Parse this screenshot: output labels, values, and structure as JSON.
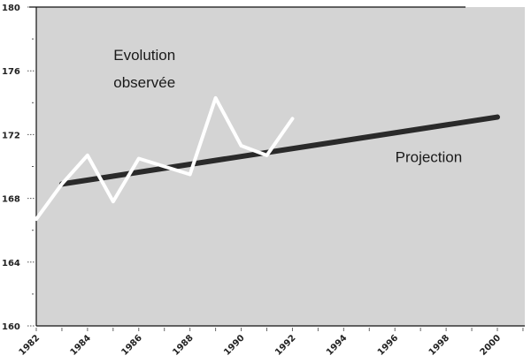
{
  "chart_data": {
    "type": "line",
    "title": "",
    "xlabel": "",
    "ylabel": "",
    "xlim": [
      1982,
      2001
    ],
    "ylim": [
      160,
      180
    ],
    "grid": false,
    "background": "#d4d4d4",
    "x_ticks": [
      1982,
      1984,
      1986,
      1988,
      1990,
      1992,
      1994,
      1996,
      1998,
      2000
    ],
    "x_tick_labels": [
      "1982",
      "1984",
      "1986",
      "1988",
      "1990",
      "1992",
      "1994",
      "1996",
      "1998",
      "2000"
    ],
    "y_ticks": [
      160,
      164,
      168,
      172,
      176,
      180
    ],
    "y_tick_labels": [
      "160",
      "164",
      "168",
      "172",
      "176",
      "180"
    ],
    "series": [
      {
        "name": "Evolution observée",
        "color": "#ffffff",
        "x": [
          1982,
          1983,
          1984,
          1985,
          1986,
          1988,
          1989,
          1990,
          1991,
          1992
        ],
        "values": [
          166.7,
          168.9,
          170.7,
          167.8,
          170.5,
          169.5,
          174.3,
          171.3,
          170.7,
          173.0
        ]
      },
      {
        "name": "Projection",
        "color": "#2a2a2a",
        "x": [
          1983,
          2000
        ],
        "values": [
          168.9,
          173.1
        ]
      }
    ],
    "annotations": [
      {
        "text": "Evolution",
        "x": 1986.5,
        "y": 177
      },
      {
        "text": "observée",
        "x": 1986.5,
        "y": 175.3
      },
      {
        "text": "Projection",
        "x": 1997.5,
        "y": 170.6
      }
    ]
  }
}
